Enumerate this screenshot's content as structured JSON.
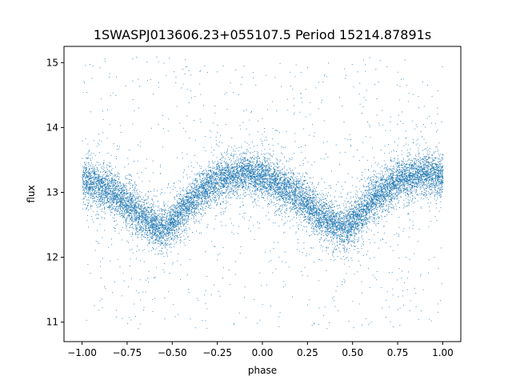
{
  "chart_data": {
    "type": "scatter",
    "title": "1SWASPJ013606.23+055107.5 Period 15214.87891s",
    "xlabel": "phase",
    "ylabel": "flux",
    "xlim": [
      -1.1,
      1.1
    ],
    "ylim": [
      10.7,
      15.25
    ],
    "x_ticks": [
      -1.0,
      -0.75,
      -0.5,
      -0.25,
      0.0,
      0.25,
      0.5,
      0.75,
      1.0
    ],
    "x_tick_labels": [
      "−1.00",
      "−0.75",
      "−0.50",
      "−0.25",
      "0.00",
      "0.25",
      "0.50",
      "0.75",
      "1.00"
    ],
    "y_ticks": [
      11,
      12,
      13,
      14,
      15
    ],
    "y_tick_labels": [
      "11",
      "12",
      "13",
      "14",
      "15"
    ],
    "grid": false,
    "legend": "none",
    "point_color": "#1f77b4",
    "light_curve": {
      "x": [
        -1.0,
        -0.9,
        -0.8,
        -0.7,
        -0.6,
        -0.55,
        -0.5,
        -0.4,
        -0.3,
        -0.2,
        -0.1,
        0.0,
        0.1,
        0.2,
        0.3,
        0.4,
        0.45,
        0.5,
        0.6,
        0.7,
        0.8,
        0.9,
        1.0
      ],
      "y": [
        13.2,
        13.1,
        12.95,
        12.7,
        12.5,
        12.45,
        12.55,
        12.85,
        13.1,
        13.25,
        13.3,
        13.25,
        13.1,
        12.95,
        12.7,
        12.5,
        12.45,
        12.55,
        12.85,
        13.1,
        13.25,
        13.3,
        13.25
      ],
      "scatter_sigma": 0.15,
      "n_points": 14000
    }
  }
}
